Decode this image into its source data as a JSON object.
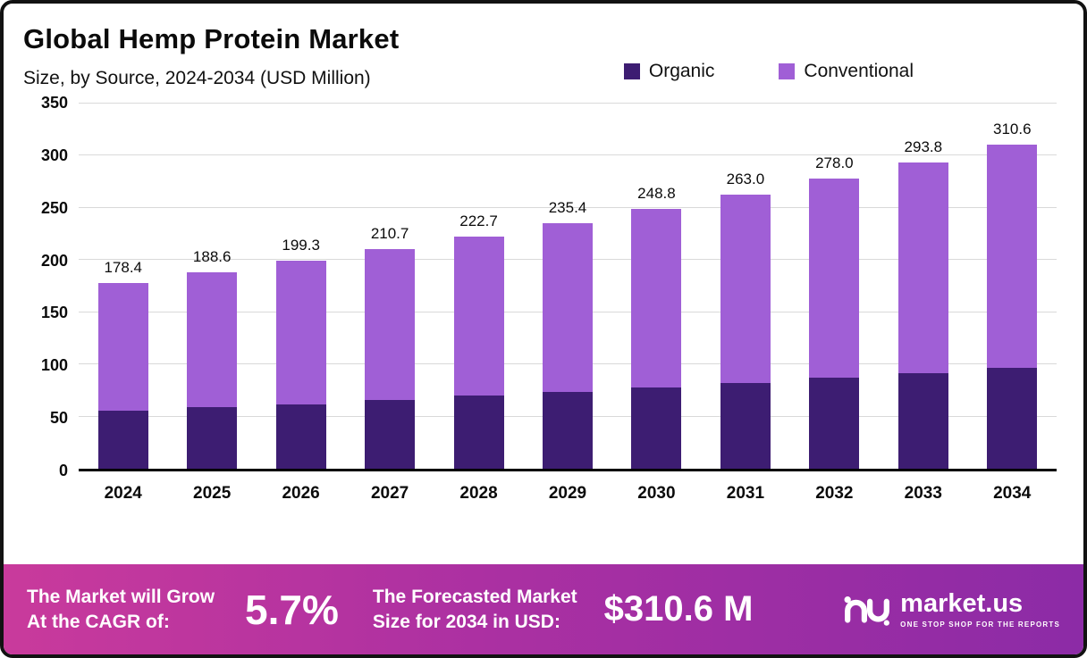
{
  "header": {
    "title": "Global Hemp Protein Market",
    "subtitle": "Size, by Source, 2024-2034 (USD Million)"
  },
  "chart_data": {
    "type": "bar",
    "stacked": true,
    "title": "Global Hemp Protein Market Size, by Source, 2024-2034 (USD Million)",
    "categories": [
      "2024",
      "2025",
      "2026",
      "2027",
      "2028",
      "2029",
      "2030",
      "2031",
      "2032",
      "2033",
      "2034"
    ],
    "series": [
      {
        "name": "Organic",
        "color": "#3d1d72",
        "values": [
          56,
          59,
          62,
          66,
          70,
          74,
          78,
          82,
          87,
          92,
          97
        ]
      },
      {
        "name": "Conventional",
        "color": "#a05fd6",
        "values": [
          122.4,
          129.6,
          137.3,
          144.7,
          152.7,
          161.4,
          170.8,
          181.0,
          191.0,
          201.8,
          213.6
        ]
      }
    ],
    "totals": [
      178.4,
      188.6,
      199.3,
      210.7,
      222.7,
      235.4,
      248.8,
      263.0,
      278.0,
      293.8,
      310.6
    ],
    "total_labels": [
      "178.4",
      "188.6",
      "199.3",
      "210.7",
      "222.7",
      "235.4",
      "248.8",
      "263.0",
      "278.0",
      "293.8",
      "310.6"
    ],
    "xlabel": "",
    "ylabel": "",
    "ylim": [
      0,
      350
    ],
    "yticks": [
      0,
      50,
      100,
      150,
      200,
      250,
      300,
      350
    ],
    "grid": true,
    "legend_position": "top"
  },
  "footer": {
    "cagr_label_line1": "The Market will Grow",
    "cagr_label_line2": "At the CAGR of:",
    "cagr_value": "5.7%",
    "forecast_label_line1": "The Forecasted Market",
    "forecast_label_line2": "Size for 2034 in USD:",
    "forecast_value": "$310.6 M",
    "brand_name": "market.us",
    "brand_tagline": "ONE STOP SHOP FOR THE REPORTS"
  }
}
